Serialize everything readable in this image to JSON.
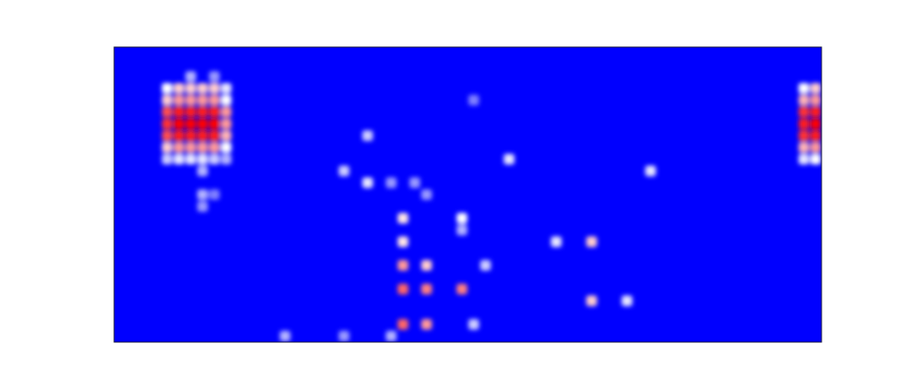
{
  "chart_data": {
    "type": "heatmap",
    "tick_labels": false,
    "xlim": [
      0,
      60
    ],
    "ylim": [
      0,
      25
    ],
    "color_range": [
      0,
      1
    ],
    "cells": [
      [
        6,
        2,
        0.35
      ],
      [
        8,
        2,
        0.3
      ],
      [
        4,
        3,
        0.5
      ],
      [
        5,
        3,
        0.6
      ],
      [
        6,
        3,
        0.6
      ],
      [
        7,
        3,
        0.6
      ],
      [
        8,
        3,
        0.6
      ],
      [
        9,
        3,
        0.45
      ],
      [
        4,
        4,
        0.6
      ],
      [
        5,
        4,
        0.7
      ],
      [
        6,
        4,
        0.7
      ],
      [
        7,
        4,
        0.7
      ],
      [
        8,
        4,
        0.7
      ],
      [
        9,
        4,
        0.5
      ],
      [
        4,
        5,
        0.85
      ],
      [
        5,
        5,
        0.95
      ],
      [
        6,
        5,
        0.95
      ],
      [
        7,
        5,
        0.95
      ],
      [
        8,
        5,
        0.95
      ],
      [
        9,
        5,
        0.7
      ],
      [
        4,
        6,
        0.9
      ],
      [
        5,
        6,
        1
      ],
      [
        6,
        6,
        1
      ],
      [
        7,
        6,
        1
      ],
      [
        8,
        6,
        1
      ],
      [
        9,
        6,
        0.7
      ],
      [
        4,
        7,
        0.85
      ],
      [
        5,
        7,
        0.95
      ],
      [
        6,
        7,
        0.95
      ],
      [
        7,
        7,
        0.95
      ],
      [
        8,
        7,
        0.95
      ],
      [
        9,
        7,
        0.65
      ],
      [
        4,
        8,
        0.6
      ],
      [
        5,
        8,
        0.7
      ],
      [
        6,
        8,
        0.7
      ],
      [
        7,
        8,
        0.7
      ],
      [
        8,
        8,
        0.7
      ],
      [
        9,
        8,
        0.5
      ],
      [
        4,
        9,
        0.4
      ],
      [
        5,
        9,
        0.45
      ],
      [
        6,
        9,
        0.45
      ],
      [
        7,
        9,
        0.45
      ],
      [
        8,
        9,
        0.4
      ],
      [
        9,
        9,
        0.35
      ],
      [
        58,
        3,
        0.5
      ],
      [
        59,
        3,
        0.6
      ],
      [
        58,
        4,
        0.65
      ],
      [
        59,
        4,
        0.7
      ],
      [
        58,
        5,
        0.9
      ],
      [
        59,
        5,
        0.95
      ],
      [
        58,
        6,
        0.95
      ],
      [
        59,
        6,
        1
      ],
      [
        58,
        7,
        0.9
      ],
      [
        59,
        7,
        0.95
      ],
      [
        58,
        8,
        0.65
      ],
      [
        59,
        8,
        0.7
      ],
      [
        58,
        9,
        0.45
      ],
      [
        59,
        9,
        0.5
      ],
      [
        7,
        10,
        0.35
      ],
      [
        7,
        12,
        0.35
      ],
      [
        8,
        12,
        0.25
      ],
      [
        7,
        13,
        0.3
      ],
      [
        21,
        7,
        0.4
      ],
      [
        19,
        10,
        0.4
      ],
      [
        21,
        11,
        0.45
      ],
      [
        23,
        11,
        0.3
      ],
      [
        25,
        11,
        0.3
      ],
      [
        26,
        12,
        0.3
      ],
      [
        30,
        4,
        0.25
      ],
      [
        33,
        9,
        0.45
      ],
      [
        29,
        14,
        0.5
      ],
      [
        24,
        14,
        0.55
      ],
      [
        24,
        16,
        0.55
      ],
      [
        29,
        15,
        0.35
      ],
      [
        24,
        18,
        0.7
      ],
      [
        26,
        18,
        0.6
      ],
      [
        31,
        18,
        0.4
      ],
      [
        24,
        20,
        0.8
      ],
      [
        26,
        20,
        0.75
      ],
      [
        29,
        20,
        0.75
      ],
      [
        24,
        23,
        0.8
      ],
      [
        26,
        23,
        0.7
      ],
      [
        30,
        23,
        0.4
      ],
      [
        14,
        24,
        0.35
      ],
      [
        19,
        24,
        0.3
      ],
      [
        23,
        24,
        0.35
      ],
      [
        37,
        16,
        0.45
      ],
      [
        40,
        16,
        0.6
      ],
      [
        45,
        10,
        0.45
      ],
      [
        40,
        21,
        0.6
      ],
      [
        43,
        21,
        0.45
      ]
    ]
  }
}
